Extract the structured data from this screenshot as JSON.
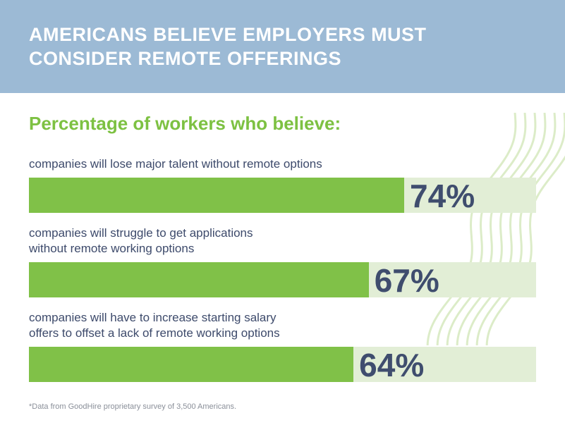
{
  "header": {
    "title": "AMERICANS BELIEVE EMPLOYERS MUST CONSIDER REMOTE OFFERINGS"
  },
  "chart_data": {
    "type": "bar",
    "orientation": "horizontal",
    "title": "AMERICANS BELIEVE EMPLOYERS MUST CONSIDER REMOTE OFFERINGS",
    "subtitle": "Percentage of workers who believe:",
    "categories": [
      "companies will lose major talent without remote options",
      "companies will struggle to get applications without remote working options",
      "companies will have to increase starting salary offers to offset a lack of remote working options"
    ],
    "category_lines": [
      [
        "companies will lose major talent without remote options"
      ],
      [
        "companies will struggle to get applications",
        "without remote working options"
      ],
      [
        "companies will have to increase starting salary",
        "offers to offset a lack of remote working options"
      ]
    ],
    "values": [
      74,
      67,
      64
    ],
    "data_labels": [
      "74%",
      "67%",
      "64%"
    ],
    "xlim": [
      0,
      100
    ],
    "colors": {
      "fill": "#80c148",
      "track": "#e2eed6",
      "header": "#9cbad5",
      "label": "#3f4d6e"
    }
  },
  "footnote": "*Data from GoodHire proprietary survey of 3,500 Americans."
}
